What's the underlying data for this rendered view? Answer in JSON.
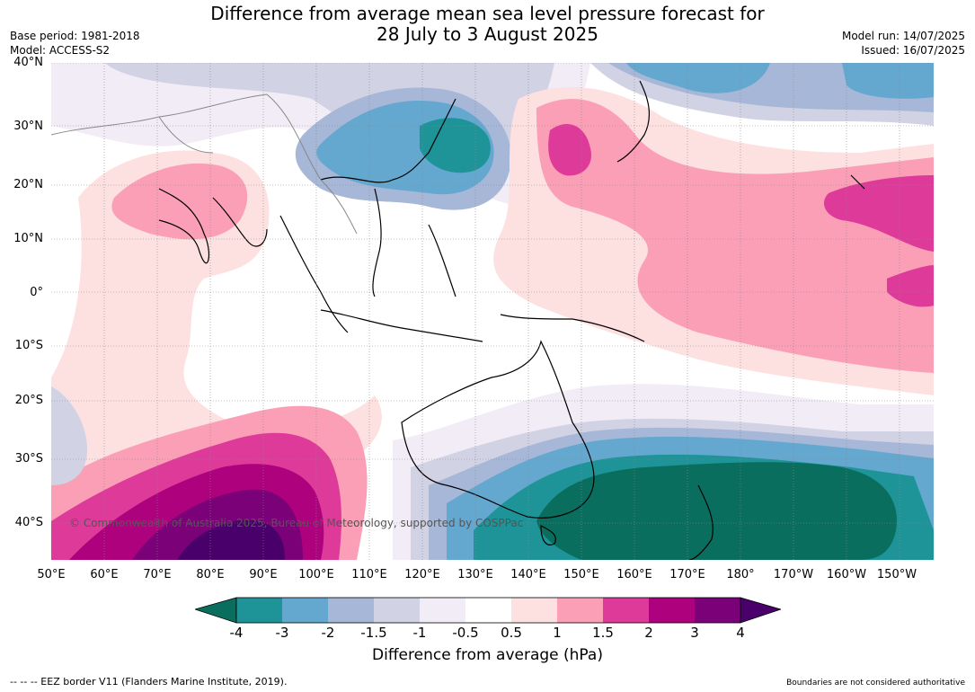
{
  "title": {
    "line1": "Difference from average mean sea level pressure forecast for",
    "line2": "28 July to 3 August 2025"
  },
  "meta": {
    "base_period": "Base period: 1981-2018",
    "model": "Model: ACCESS-S2",
    "model_run": "Model run: 14/07/2025",
    "issued": "Issued: 16/07/2025"
  },
  "map": {
    "lat_labels": [
      "40°N",
      "30°N",
      "20°N",
      "10°N",
      "0°",
      "10°S",
      "20°S",
      "30°S",
      "40°S"
    ],
    "lon_labels": [
      "50°E",
      "60°E",
      "70°E",
      "80°E",
      "90°E",
      "100°E",
      "110°E",
      "120°E",
      "130°E",
      "140°E",
      "150°E",
      "160°E",
      "170°E",
      "180°",
      "170°W",
      "160°W",
      "150°W"
    ],
    "copyright": "© Commonwealth of Australia 2025, Bureau of Meteorology, supported by COSPPac"
  },
  "colorbar": {
    "label": "Difference from average (hPa)",
    "ticks": [
      "-4",
      "-3",
      "-2",
      "-1.5",
      "-1",
      "-0.5",
      "0.5",
      "1",
      "1.5",
      "2",
      "3",
      "4"
    ],
    "colors": {
      "lt_-4": "#0a6e5e",
      "-4_-3": "#1e9398",
      "-3_-2": "#65a8cf",
      "-2_-1.5": "#a7b7d7",
      "-1.5_-1": "#d2d2e5",
      "-1_-0.5": "#f1ecf5",
      "-0.5_0.5": "#ffffff",
      "0.5_1": "#fde0e0",
      "1_1.5": "#fa9fb5",
      "1.5_2": "#de3a9a",
      "2_3": "#ae017e",
      "3_4": "#7a0177",
      "gt_4": "#49006a"
    }
  },
  "footer": {
    "eez": "--  --  -- EEZ border V11 (Flanders Marine Institute, 2019).",
    "disclaimer": "Boundaries are not considered authoritative"
  }
}
